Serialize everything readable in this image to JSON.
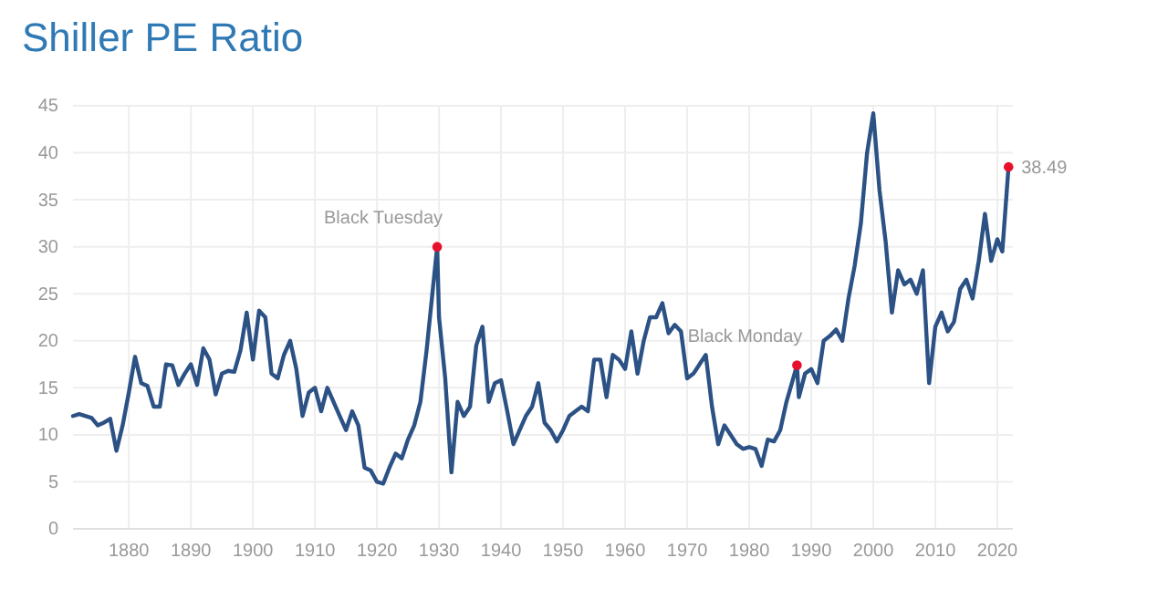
{
  "chart_data": {
    "type": "line",
    "title": "Shiller PE Ratio",
    "xlim": [
      1871,
      2022.5
    ],
    "xticks": [
      1880,
      1890,
      1900,
      1910,
      1920,
      1930,
      1940,
      1950,
      1960,
      1970,
      1980,
      1990,
      2000,
      2010,
      2020
    ],
    "ylim": [
      0,
      45
    ],
    "yticks": [
      0,
      5,
      10,
      15,
      20,
      25,
      30,
      35,
      40,
      45
    ],
    "grid": true,
    "series": [
      {
        "color": "#2b5185",
        "marker": "none",
        "x": [
          1871,
          1872,
          1874,
          1875,
          1876,
          1877,
          1878,
          1879,
          1880,
          1881,
          1882,
          1883,
          1884,
          1885,
          1886,
          1887,
          1888,
          1889,
          1890,
          1891,
          1892,
          1893,
          1894,
          1895,
          1896,
          1897,
          1898,
          1899,
          1900,
          1901,
          1902,
          1903,
          1904,
          1905,
          1906,
          1907,
          1908,
          1909,
          1910,
          1911,
          1912,
          1913,
          1914,
          1915,
          1916,
          1917,
          1918,
          1919,
          1920,
          1921,
          1922,
          1923,
          1924,
          1925,
          1926,
          1927,
          1928,
          1929.7,
          1930,
          1931,
          1932,
          1933,
          1934,
          1935,
          1936,
          1937,
          1938,
          1939,
          1940,
          1941,
          1942,
          1943,
          1944,
          1945,
          1946,
          1947,
          1948,
          1949,
          1950,
          1951,
          1952,
          1953,
          1954,
          1955,
          1956,
          1957,
          1958,
          1959,
          1960,
          1961,
          1962,
          1963,
          1964,
          1965,
          1966,
          1967,
          1968,
          1969,
          1970,
          1971,
          1972,
          1973,
          1974,
          1975,
          1976,
          1977,
          1978,
          1979,
          1980,
          1981,
          1982,
          1983,
          1984,
          1985,
          1986,
          1987.7,
          1988,
          1989,
          1990,
          1991,
          1992,
          1993,
          1994,
          1995,
          1996,
          1997,
          1998,
          1999,
          2000,
          2001,
          2002,
          2003,
          2004,
          2005,
          2006,
          2007,
          2008,
          2009,
          2010,
          2011,
          2012,
          2013,
          2014,
          2015,
          2016,
          2017,
          2018,
          2019,
          2020,
          2020.8,
          2021.8
        ],
        "values": [
          12,
          12.2,
          11.8,
          11,
          11.3,
          11.7,
          8.3,
          11,
          14.5,
          18.3,
          15.5,
          15.2,
          13,
          13,
          17.5,
          17.4,
          15.3,
          16.5,
          17.5,
          15.3,
          19.2,
          18,
          14.3,
          16.5,
          16.8,
          16.7,
          19,
          23,
          18,
          23.2,
          22.5,
          16.5,
          16,
          18.5,
          20,
          17,
          12,
          14.5,
          15,
          12.5,
          15,
          13.5,
          12,
          10.5,
          12.5,
          11,
          6.5,
          6.2,
          5,
          4.8,
          6.5,
          8,
          7.5,
          9.5,
          11,
          13.5,
          19,
          30,
          22.5,
          16,
          6,
          13.5,
          12,
          13,
          19.5,
          21.5,
          13.5,
          15.5,
          15.8,
          12.5,
          9,
          10.5,
          12,
          13,
          15.5,
          11.3,
          10.5,
          9.3,
          10.5,
          12,
          12.5,
          13,
          12.5,
          18,
          18,
          14,
          18.5,
          18,
          17,
          21,
          16.5,
          20,
          22.5,
          22.5,
          24,
          20.8,
          21.7,
          21,
          16,
          16.5,
          17.5,
          18.5,
          13,
          9,
          11,
          10,
          9,
          8.5,
          8.7,
          8.5,
          6.7,
          9.5,
          9.3,
          10.5,
          13.5,
          17.4,
          14,
          16.5,
          17,
          15.5,
          20,
          20.5,
          21.2,
          20,
          24.5,
          28,
          32.5,
          40,
          44.2,
          36,
          30.5,
          23,
          27.5,
          26,
          26.5,
          25,
          27.5,
          15.5,
          21.5,
          23,
          21,
          22,
          25.5,
          26.5,
          24.5,
          28.5,
          33.5,
          28.5,
          30.8,
          29.5,
          38.49
        ]
      },
      {
        "type": "scatter",
        "color": "#e8112d",
        "marker": "circle",
        "x": [
          1929.7,
          1987.7,
          2021.8
        ],
        "values": [
          30,
          17.4,
          38.49
        ]
      }
    ],
    "annotations": [
      {
        "text": "Black Tuesday",
        "x": 1929.7,
        "y": 30
      },
      {
        "text": "Black Monday",
        "x": 1987.7,
        "y": 17.4
      },
      {
        "text": "38.49",
        "x": 2021.8,
        "y": 38.49
      }
    ]
  }
}
